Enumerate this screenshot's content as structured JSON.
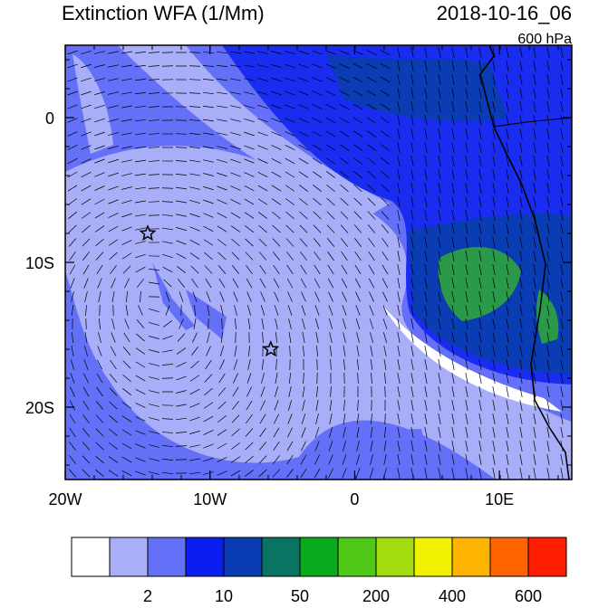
{
  "chart_data": {
    "type": "map",
    "title": "Extinction WFA (1/Mm)",
    "date": "2018-10-16_06",
    "level": "600 hPa",
    "xlim": [
      -20,
      15
    ],
    "ylim": [
      -25,
      5
    ],
    "xticks": [
      {
        "value": -20,
        "label": "20W"
      },
      {
        "value": -10,
        "label": "10W"
      },
      0,
      {
        "value": 10,
        "label": "10E"
      }
    ],
    "yticks": [
      0,
      {
        "value": -10,
        "label": "10S"
      },
      {
        "value": -20,
        "label": "20S"
      }
    ],
    "markers": [
      {
        "lon": -14.3,
        "lat": -8
      },
      {
        "lon": -5.8,
        "lat": -16
      }
    ],
    "colorbar": {
      "colors": [
        "#ffffff",
        "#a9aef9",
        "#6470f8",
        "#0a1ef0",
        "#0a3cb4",
        "#0a7462",
        "#0aaa1e",
        "#50c818",
        "#a2dc10",
        "#f0f000",
        "#ffb400",
        "#ff6400",
        "#ff1e00"
      ],
      "labels": [
        "2",
        "10",
        "50",
        "200",
        "400",
        "600"
      ]
    }
  }
}
